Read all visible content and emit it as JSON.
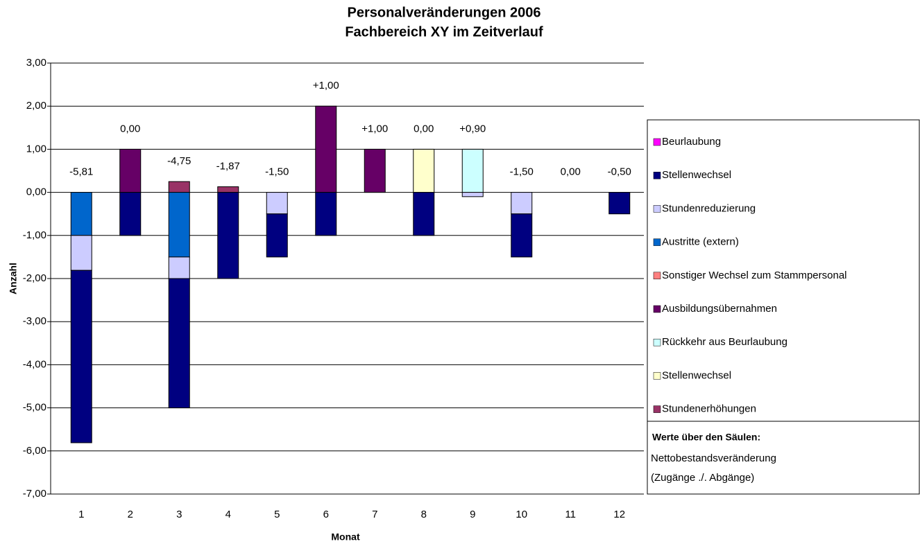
{
  "chart_data": {
    "type": "stacked-bar",
    "title": "Personalveränderungen 2006",
    "subtitle": "Fachbereich XY im Zeitverlauf",
    "x_label": "Monat",
    "y_label": "Anzahl",
    "categories": [
      "1",
      "2",
      "3",
      "4",
      "5",
      "6",
      "7",
      "8",
      "9",
      "10",
      "11",
      "12"
    ],
    "series": [
      {
        "name": "Beurlaubung",
        "color": "#ff00ff",
        "values": [
          0,
          0,
          0,
          0,
          0,
          0,
          0,
          0,
          0,
          0,
          0,
          0
        ]
      },
      {
        "name": "Stellenwechsel",
        "color": "#000080",
        "values": [
          -4,
          -1,
          -3,
          -2,
          -1,
          -1,
          0,
          -1,
          0,
          -1,
          0,
          -0.5
        ]
      },
      {
        "name": "Stundenreduzierung",
        "color": "#ccccff",
        "values": [
          -0.81,
          0,
          -0.5,
          0,
          -0.5,
          0,
          0,
          0,
          -0.1,
          -0.5,
          0,
          0
        ]
      },
      {
        "name": "Austritte (extern)",
        "color": "#0066cc",
        "values": [
          -1,
          0,
          -1.5,
          0,
          0,
          0,
          0,
          0,
          0,
          0,
          0,
          0
        ]
      },
      {
        "name": "Sonstiger Wechsel zum Stammpersonal",
        "color": "#ff8080",
        "values": [
          0,
          0,
          0,
          0,
          0,
          0,
          0,
          0,
          0,
          0,
          0,
          0
        ]
      },
      {
        "name": "Ausbildungsübernahmen",
        "color": "#660066",
        "values": [
          0,
          1,
          0,
          0,
          0,
          2,
          1,
          0,
          0,
          0,
          0,
          0
        ]
      },
      {
        "name": "Rückkehr aus Beurlaubung",
        "color": "#ccffff",
        "values": [
          0,
          0,
          0,
          0,
          0,
          0,
          0,
          0,
          1,
          0,
          0,
          0
        ]
      },
      {
        "name": "Stellenwechsel",
        "color": "#ffffcc",
        "values": [
          0,
          0,
          0,
          0,
          0,
          0,
          0,
          1,
          0,
          0,
          0,
          0
        ]
      },
      {
        "name": "Stundenerhöhungen",
        "color": "#993366",
        "values": [
          0,
          0,
          0.25,
          0.13,
          0,
          0,
          0,
          0,
          0,
          0,
          0,
          0
        ]
      }
    ],
    "net_values": [
      -5.81,
      0,
      -4.75,
      -1.87,
      -1.5,
      1,
      1,
      0,
      0.9,
      -1.5,
      0,
      -0.5
    ],
    "net_value_labels": [
      "-5,81",
      "0,00",
      "-4,75",
      "-1,87",
      "-1,50",
      "+1,00",
      "+1,00",
      "0,00",
      "+0,90",
      "-1,50",
      "0,00",
      "-0,50"
    ],
    "ylim": [
      -7,
      3
    ],
    "yticks": [
      {
        "value": -7,
        "label": "-7,00"
      },
      {
        "value": -6,
        "label": "-6,00"
      },
      {
        "value": -5,
        "label": "-5,00"
      },
      {
        "value": -4,
        "label": "-4,00"
      },
      {
        "value": -3,
        "label": "-3,00"
      },
      {
        "value": -2,
        "label": "-2,00"
      },
      {
        "value": -1,
        "label": "-1,00"
      },
      {
        "value": 0,
        "label": "0,00"
      },
      {
        "value": 1,
        "label": "1,00"
      },
      {
        "value": 2,
        "label": "2,00"
      },
      {
        "value": 3,
        "label": "3,00"
      }
    ],
    "grid": true,
    "legend": "right",
    "note_title": "Werte über den Säulen:",
    "note_lines": [
      "Nettobestandsveränderung",
      "(Zugänge ./. Abgänge)"
    ]
  }
}
